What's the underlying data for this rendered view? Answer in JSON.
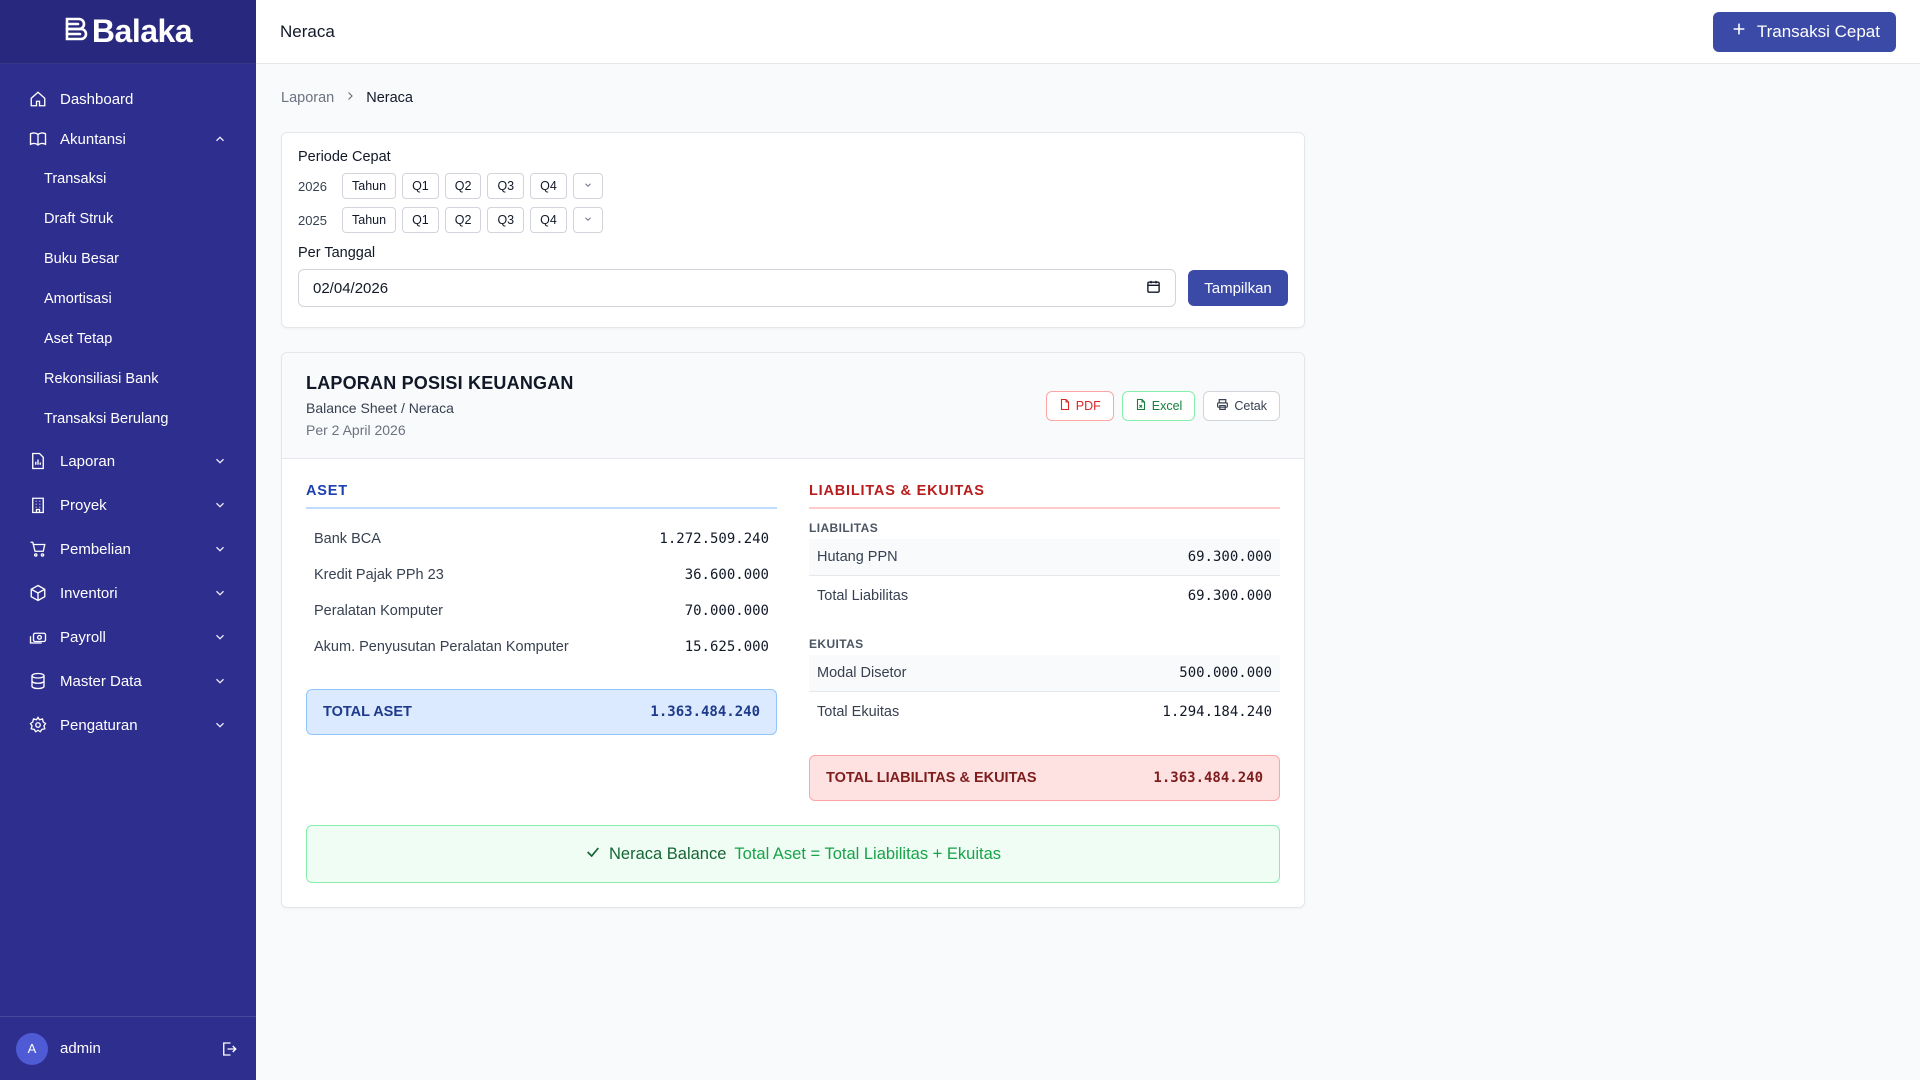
{
  "app": {
    "name": "Balaka"
  },
  "sidebar": {
    "items": [
      {
        "label": "Dashboard",
        "icon": "home-icon"
      },
      {
        "label": "Akuntansi",
        "icon": "book-icon",
        "expanded": true
      },
      {
        "label": "Laporan",
        "icon": "report-icon"
      },
      {
        "label": "Proyek",
        "icon": "building-icon"
      },
      {
        "label": "Pembelian",
        "icon": "cart-icon"
      },
      {
        "label": "Inventori",
        "icon": "box-icon"
      },
      {
        "label": "Payroll",
        "icon": "payroll-icon"
      },
      {
        "label": "Master Data",
        "icon": "database-icon"
      },
      {
        "label": "Pengaturan",
        "icon": "gear-icon"
      }
    ],
    "sub_items": [
      "Transaksi",
      "Draft Struk",
      "Buku Besar",
      "Amortisasi",
      "Aset Tetap",
      "Rekonsiliasi Bank",
      "Transaksi Berulang"
    ],
    "user": {
      "initial": "A",
      "name": "admin"
    }
  },
  "topbar": {
    "title": "Neraca",
    "quick_button": "Transaksi Cepat"
  },
  "breadcrumb": {
    "parent": "Laporan",
    "current": "Neraca"
  },
  "period": {
    "label": "Periode Cepat",
    "rows": [
      {
        "year": "2026",
        "buttons": [
          "Tahun",
          "Q1",
          "Q2",
          "Q3",
          "Q4"
        ]
      },
      {
        "year": "2025",
        "buttons": [
          "Tahun",
          "Q1",
          "Q2",
          "Q3",
          "Q4"
        ]
      }
    ],
    "date_label": "Per Tanggal",
    "date_value": "02/04/2026",
    "show_button": "Tampilkan"
  },
  "report": {
    "title": "LAPORAN POSISI KEUANGAN",
    "subtitle": "Balance Sheet / Neraca",
    "date": "Per 2 April 2026",
    "export": {
      "pdf": "PDF",
      "excel": "Excel",
      "print": "Cetak"
    },
    "aset": {
      "heading": "ASET",
      "lines": [
        {
          "name": "Bank BCA",
          "amount": "1.272.509.240"
        },
        {
          "name": "Kredit Pajak PPh 23",
          "amount": "36.600.000"
        },
        {
          "name": "Peralatan Komputer",
          "amount": "70.000.000"
        },
        {
          "name": "Akum. Penyusutan Peralatan Komputer",
          "amount": "15.625.000"
        }
      ],
      "total_label": "TOTAL ASET",
      "total_amount": "1.363.484.240"
    },
    "liab": {
      "heading": "LIABILITAS & EKUITAS",
      "liabilitas_label": "LIABILITAS",
      "liabilitas_lines": [
        {
          "name": "Hutang PPN",
          "amount": "69.300.000"
        }
      ],
      "liabilitas_total_label": "Total Liabilitas",
      "liabilitas_total": "69.300.000",
      "ekuitas_label": "EKUITAS",
      "ekuitas_lines": [
        {
          "name": "Modal Disetor",
          "amount": "500.000.000"
        }
      ],
      "ekuitas_total_label": "Total Ekuitas",
      "ekuitas_total": "1.294.184.240",
      "total_label": "TOTAL LIABILITAS & EKUITAS",
      "total_amount": "1.363.484.240"
    },
    "balance": {
      "status": "Neraca Balance",
      "formula": "Total Aset = Total Liabilitas + Ekuitas"
    }
  },
  "colors": {
    "sidebar": "#2e2e8f",
    "primary": "#3b4aa6",
    "aset": "#1e40af",
    "liab": "#b91c1c",
    "success": "#16a34a"
  }
}
